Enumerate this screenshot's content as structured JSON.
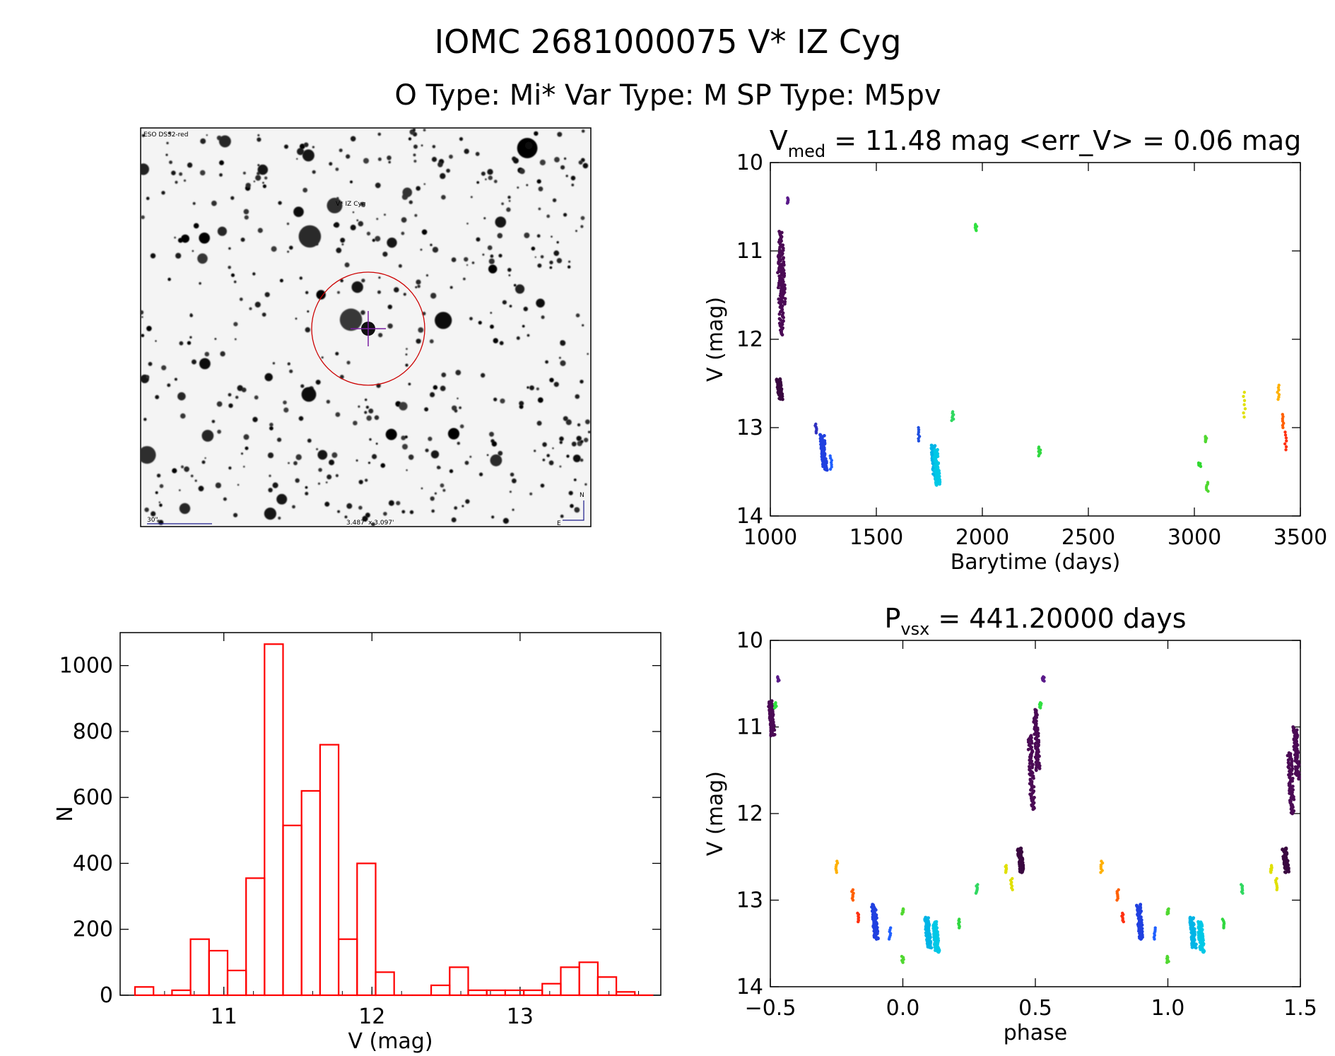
{
  "header": {
    "title": "IOMC 2681000075    V* IZ Cyg",
    "subtitle": "O Type: Mi*  Var Type: M  SP Type: M5pv"
  },
  "finder": {
    "survey": "ESO DSS2-red",
    "target_label": "V* IZ Cyg",
    "scale_label": "30\"",
    "size_label": "3.487' x 3.097'",
    "north": "N",
    "east": "E"
  },
  "colors": {
    "histogram": "#ff0000",
    "circle": "#cc0000",
    "cross": "#7a1fa2",
    "axis": "#000000"
  },
  "chart_data": [
    {
      "id": "lightcurve",
      "type": "scatter",
      "title_main": "V",
      "title_sub": "med",
      "title_rest": " = 11.48 mag <err_V> = 0.06 mag",
      "xlabel": "Barytime (days)",
      "ylabel": "V (mag)",
      "xlim": [
        1000,
        3500
      ],
      "ylim": [
        14,
        10
      ],
      "xticks": [
        1000,
        1500,
        2000,
        2500,
        3000,
        3500
      ],
      "xtick_labels": [
        "1000",
        "1500",
        "2000",
        "2500",
        "3000",
        "3500"
      ],
      "yticks": [
        10,
        11,
        12,
        13,
        14
      ],
      "ytick_labels": [
        "10",
        "11",
        "12",
        "13",
        "14"
      ],
      "groups": [
        {
          "t": 1055,
          "vmin": 11.05,
          "vmax": 11.95,
          "color": "#4b0a55",
          "dense": true
        },
        {
          "t": 1062,
          "vmin": 10.78,
          "vmax": 11.6,
          "color": "#4b0a55",
          "dense": true
        },
        {
          "t": 1050,
          "vmin": 12.45,
          "vmax": 12.68,
          "color": "#3a0840",
          "dense": true
        },
        {
          "t": 1083,
          "vmin": 10.4,
          "vmax": 10.46,
          "color": "#5a1a8a",
          "dense": false
        },
        {
          "t": 1215,
          "vmin": 12.96,
          "vmax": 13.06,
          "color": "#3030c0",
          "dense": false
        },
        {
          "t": 1258,
          "vmin": 13.08,
          "vmax": 13.48,
          "color": "#2040e0",
          "dense": true
        },
        {
          "t": 1285,
          "vmin": 13.32,
          "vmax": 13.47,
          "color": "#2060ff",
          "dense": false
        },
        {
          "t": 1700,
          "vmin": 13.0,
          "vmax": 13.15,
          "color": "#2050e0",
          "dense": false
        },
        {
          "t": 1780,
          "vmin": 13.2,
          "vmax": 13.58,
          "color": "#00b4e6",
          "dense": true
        },
        {
          "t": 1792,
          "vmin": 13.25,
          "vmax": 13.65,
          "color": "#00c8e6",
          "dense": true
        },
        {
          "t": 1860,
          "vmin": 12.82,
          "vmax": 12.92,
          "color": "#30d860",
          "dense": false
        },
        {
          "t": 1970,
          "vmin": 10.7,
          "vmax": 10.77,
          "color": "#30e040",
          "dense": false
        },
        {
          "t": 2270,
          "vmin": 13.22,
          "vmax": 13.32,
          "color": "#30d840",
          "dense": false
        },
        {
          "t": 3025,
          "vmin": 13.4,
          "vmax": 13.44,
          "color": "#30d830",
          "dense": false
        },
        {
          "t": 3055,
          "vmin": 13.1,
          "vmax": 13.16,
          "color": "#50d830",
          "dense": false
        },
        {
          "t": 3060,
          "vmin": 13.62,
          "vmax": 13.72,
          "color": "#50d830",
          "dense": false
        },
        {
          "t": 3235,
          "vmin": 12.6,
          "vmax": 12.88,
          "color": "#e0e000",
          "dense": false
        },
        {
          "t": 3395,
          "vmin": 12.52,
          "vmax": 12.68,
          "color": "#ffb000",
          "dense": false
        },
        {
          "t": 3420,
          "vmin": 12.85,
          "vmax": 13.0,
          "color": "#ff6000",
          "dense": false
        },
        {
          "t": 3430,
          "vmin": 13.05,
          "vmax": 13.25,
          "color": "#ff3010",
          "dense": false
        }
      ]
    },
    {
      "id": "phased",
      "type": "scatter",
      "title_main": "P",
      "title_sub": "vsx",
      "title_rest": " = 441.20000 days",
      "xlabel": "phase",
      "ylabel": "V (mag)",
      "xlim": [
        -0.5,
        1.5
      ],
      "ylim": [
        14,
        10
      ],
      "xticks": [
        -0.5,
        0.0,
        0.5,
        1.0,
        1.5
      ],
      "xtick_labels": [
        "−0.5",
        "0.0",
        "0.5",
        "1.0",
        "1.5"
      ],
      "yticks": [
        10,
        11,
        12,
        13,
        14
      ],
      "ytick_labels": [
        "10",
        "11",
        "12",
        "13",
        "14"
      ],
      "groups": [
        {
          "p": -0.49,
          "vmin": 10.7,
          "vmax": 11.1,
          "color": "#4b0a55",
          "dense": true
        },
        {
          "p": -0.47,
          "vmin": 10.42,
          "vmax": 10.47,
          "color": "#5a1a8a",
          "dense": false
        },
        {
          "p": -0.48,
          "vmin": 10.72,
          "vmax": 10.78,
          "color": "#30e040",
          "dense": false
        },
        {
          "p": -0.25,
          "vmin": 12.55,
          "vmax": 12.68,
          "color": "#ffb000",
          "dense": false
        },
        {
          "p": -0.19,
          "vmin": 12.88,
          "vmax": 13.0,
          "color": "#ff6000",
          "dense": false
        },
        {
          "p": -0.17,
          "vmin": 13.15,
          "vmax": 13.25,
          "color": "#ff3010",
          "dense": false
        },
        {
          "p": -0.1,
          "vmin": 13.05,
          "vmax": 13.45,
          "color": "#2040e0",
          "dense": true
        },
        {
          "p": -0.05,
          "vmin": 13.32,
          "vmax": 13.45,
          "color": "#2060ff",
          "dense": false
        },
        {
          "p": 0.0,
          "vmin": 13.65,
          "vmax": 13.72,
          "color": "#50d830",
          "dense": false
        },
        {
          "p": 0.0,
          "vmin": 13.1,
          "vmax": 13.16,
          "color": "#50d830",
          "dense": false
        },
        {
          "p": 0.1,
          "vmin": 13.2,
          "vmax": 13.55,
          "color": "#00b4e6",
          "dense": true
        },
        {
          "p": 0.13,
          "vmin": 13.25,
          "vmax": 13.6,
          "color": "#00c8e6",
          "dense": true
        },
        {
          "p": 0.21,
          "vmin": 13.22,
          "vmax": 13.32,
          "color": "#30d840",
          "dense": false
        },
        {
          "p": 0.28,
          "vmin": 12.82,
          "vmax": 12.92,
          "color": "#30d860",
          "dense": false
        },
        {
          "p": 0.39,
          "vmin": 12.6,
          "vmax": 12.68,
          "color": "#e0e000",
          "dense": false
        },
        {
          "p": 0.41,
          "vmin": 12.75,
          "vmax": 12.88,
          "color": "#e0e000",
          "dense": false
        },
        {
          "p": 0.45,
          "vmin": 12.4,
          "vmax": 12.68,
          "color": "#3a0840",
          "dense": true
        },
        {
          "p": 0.49,
          "vmin": 11.1,
          "vmax": 11.95,
          "color": "#4b0a55",
          "dense": true
        },
        {
          "p": 0.51,
          "vmin": 10.8,
          "vmax": 11.5,
          "color": "#4b0a55",
          "dense": true
        },
        {
          "p": 0.52,
          "vmin": 10.72,
          "vmax": 10.78,
          "color": "#30e040",
          "dense": false
        },
        {
          "p": 0.53,
          "vmin": 10.42,
          "vmax": 10.47,
          "color": "#5a1a8a",
          "dense": false
        },
        {
          "p": 0.75,
          "vmin": 12.55,
          "vmax": 12.68,
          "color": "#ffb000",
          "dense": false
        },
        {
          "p": 0.81,
          "vmin": 12.88,
          "vmax": 13.0,
          "color": "#ff6000",
          "dense": false
        },
        {
          "p": 0.83,
          "vmin": 13.15,
          "vmax": 13.25,
          "color": "#ff3010",
          "dense": false
        },
        {
          "p": 0.9,
          "vmin": 13.05,
          "vmax": 13.45,
          "color": "#2040e0",
          "dense": true
        },
        {
          "p": 0.95,
          "vmin": 13.32,
          "vmax": 13.45,
          "color": "#2060ff",
          "dense": false
        },
        {
          "p": 1.0,
          "vmin": 13.65,
          "vmax": 13.72,
          "color": "#50d830",
          "dense": false
        },
        {
          "p": 1.0,
          "vmin": 13.1,
          "vmax": 13.16,
          "color": "#50d830",
          "dense": false
        },
        {
          "p": 1.1,
          "vmin": 13.2,
          "vmax": 13.55,
          "color": "#00b4e6",
          "dense": true
        },
        {
          "p": 1.13,
          "vmin": 13.25,
          "vmax": 13.6,
          "color": "#00c8e6",
          "dense": true
        },
        {
          "p": 1.21,
          "vmin": 13.22,
          "vmax": 13.32,
          "color": "#30d840",
          "dense": false
        },
        {
          "p": 1.28,
          "vmin": 12.82,
          "vmax": 12.92,
          "color": "#30d860",
          "dense": false
        },
        {
          "p": 1.39,
          "vmin": 12.6,
          "vmax": 12.68,
          "color": "#e0e000",
          "dense": false
        },
        {
          "p": 1.41,
          "vmin": 12.75,
          "vmax": 12.88,
          "color": "#e0e000",
          "dense": false
        },
        {
          "p": 1.45,
          "vmin": 12.4,
          "vmax": 12.68,
          "color": "#3a0840",
          "dense": true
        },
        {
          "p": 1.47,
          "vmin": 11.3,
          "vmax": 12.0,
          "color": "#4b0a55",
          "dense": true
        },
        {
          "p": 1.49,
          "vmin": 11.0,
          "vmax": 11.6,
          "color": "#4b0a55",
          "dense": true
        }
      ]
    },
    {
      "id": "histogram",
      "type": "bar",
      "xlabel": "V (mag)",
      "ylabel": "N",
      "xlim": [
        10.3,
        13.95
      ],
      "ylim": [
        0,
        1100
      ],
      "bin_width": 0.125,
      "xticks": [
        11,
        12,
        13
      ],
      "xtick_labels": [
        "11",
        "12",
        "13"
      ],
      "yticks": [
        0,
        200,
        400,
        600,
        800,
        1000
      ],
      "ytick_labels": [
        "0",
        "200",
        "400",
        "600",
        "800",
        "1000"
      ],
      "bin_starts": [
        10.4,
        10.525,
        10.65,
        10.775,
        10.9,
        11.025,
        11.15,
        11.275,
        11.4,
        11.525,
        11.65,
        11.775,
        11.9,
        12.025,
        12.15,
        12.275,
        12.4,
        12.525,
        12.65,
        12.775,
        12.9,
        13.025,
        13.15,
        13.275,
        13.4,
        13.525,
        13.65,
        13.775
      ],
      "counts": [
        25,
        0,
        15,
        170,
        135,
        75,
        355,
        1065,
        515,
        620,
        760,
        170,
        400,
        70,
        0,
        0,
        30,
        85,
        15,
        15,
        15,
        15,
        35,
        85,
        100,
        55,
        10,
        0
      ]
    }
  ]
}
